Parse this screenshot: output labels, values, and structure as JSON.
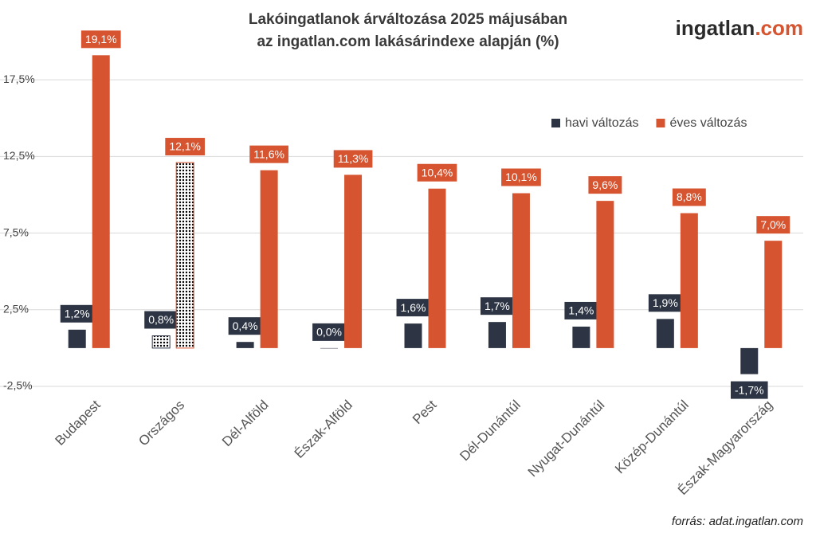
{
  "chart_data": {
    "type": "bar",
    "title": [
      "Lakóingatlanok árváltozása 2025 májusában",
      "az ingatlan.com lakásárindexe alapján (%)"
    ],
    "logo": [
      "ingatlan",
      ".com"
    ],
    "source": "forrás: adat.ingatlan.com",
    "categories": [
      "Budapest",
      "Országos",
      "Dél-Alföld",
      "Észak-Alföld",
      "Pest",
      "Dél-Dunántúl",
      "Nyugat-Dunántúl",
      "Közép-Dunántúl",
      "Észak-Magyarország"
    ],
    "patterned": [
      false,
      true,
      false,
      false,
      false,
      false,
      false,
      false,
      false
    ],
    "series": [
      {
        "name": "havi változás",
        "color": "#2d3544",
        "values": [
          1.2,
          0.8,
          0.4,
          0.0,
          1.6,
          1.7,
          1.4,
          1.9,
          -1.7
        ],
        "value_labels": [
          "1,2%",
          "0,8%",
          "0,4%",
          "0,0%",
          "1,6%",
          "1,7%",
          "1,4%",
          "1,9%",
          "-1,7%"
        ]
      },
      {
        "name": "éves változás",
        "color": "#d6542f",
        "values": [
          19.1,
          12.1,
          11.6,
          11.3,
          10.4,
          10.1,
          9.6,
          8.8,
          7.0
        ],
        "value_labels": [
          "19,1%",
          "12,1%",
          "11,6%",
          "11,3%",
          "10,4%",
          "10,1%",
          "9,6%",
          "8,8%",
          "7,0%"
        ]
      }
    ],
    "ylim": [
      -2.5,
      20
    ],
    "yticks": [
      {
        "value": -2.5,
        "label": "-2,5%"
      },
      {
        "value": 2.5,
        "label": "2,5%"
      },
      {
        "value": 7.5,
        "label": "7,5%"
      },
      {
        "value": 12.5,
        "label": "12,5%"
      },
      {
        "value": 17.5,
        "label": "17,5%"
      }
    ],
    "grid": true
  }
}
